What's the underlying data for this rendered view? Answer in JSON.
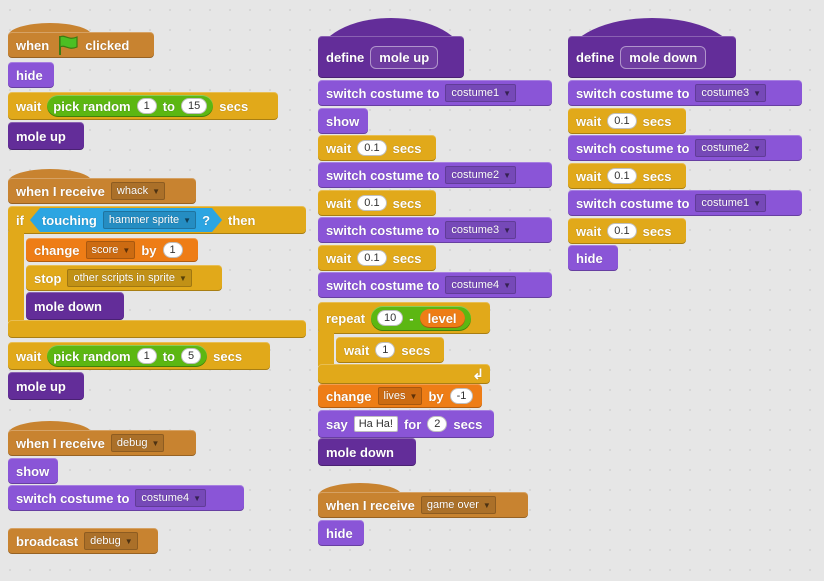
{
  "scripts": [
    {
      "blocks": [
        {
          "parts": [
            "when",
            "clicked"
          ]
        },
        {
          "parts": [
            "hide"
          ]
        },
        {
          "parts": [
            "wait",
            "pick random",
            1,
            "to",
            15,
            "secs"
          ]
        },
        {
          "parts": [
            "mole up"
          ]
        }
      ]
    },
    {
      "blocks": [
        {
          "parts": [
            "when I receive",
            "whack"
          ]
        },
        {
          "parts": [
            "if",
            "touching",
            "hammer sprite",
            "?",
            "then"
          ],
          "inner": [
            {
              "parts": [
                "change",
                "score",
                "by",
                1
              ]
            },
            {
              "parts": [
                "stop",
                "other scripts in sprite"
              ]
            },
            {
              "parts": [
                "mole down"
              ]
            }
          ]
        },
        {
          "parts": [
            "wait",
            "pick random",
            1,
            "to",
            5,
            "secs"
          ]
        },
        {
          "parts": [
            "mole up"
          ]
        }
      ]
    },
    {
      "blocks": [
        {
          "parts": [
            "when I receive",
            "debug"
          ]
        },
        {
          "parts": [
            "show"
          ]
        },
        {
          "parts": [
            "switch costume to",
            "costume4"
          ]
        }
      ]
    },
    {
      "blocks": [
        {
          "parts": [
            "broadcast",
            "debug"
          ]
        }
      ]
    },
    {
      "blocks": [
        {
          "parts": [
            "define",
            "mole up"
          ]
        },
        {
          "parts": [
            "switch costume to",
            "costume1"
          ]
        },
        {
          "parts": [
            "show"
          ]
        },
        {
          "parts": [
            "wait",
            0.1,
            "secs"
          ]
        },
        {
          "parts": [
            "switch costume to",
            "costume2"
          ]
        },
        {
          "parts": [
            "wait",
            0.1,
            "secs"
          ]
        },
        {
          "parts": [
            "switch costume to",
            "costume3"
          ]
        },
        {
          "parts": [
            "wait",
            0.1,
            "secs"
          ]
        },
        {
          "parts": [
            "switch costume to",
            "costume4"
          ]
        },
        {
          "parts": [
            "repeat",
            10,
            "-",
            "level"
          ],
          "inner": [
            {
              "parts": [
                "wait",
                1,
                "secs"
              ]
            }
          ]
        },
        {
          "parts": [
            "change",
            "lives",
            "by",
            -1
          ]
        },
        {
          "parts": [
            "say",
            "Ha Ha!",
            "for",
            2,
            "secs"
          ]
        },
        {
          "parts": [
            "mole down"
          ]
        }
      ]
    },
    {
      "blocks": [
        {
          "parts": [
            "when I receive",
            "game over"
          ]
        },
        {
          "parts": [
            "hide"
          ]
        }
      ]
    },
    {
      "blocks": [
        {
          "parts": [
            "define",
            "mole down"
          ]
        },
        {
          "parts": [
            "switch costume to",
            "costume3"
          ]
        },
        {
          "parts": [
            "wait",
            0.1,
            "secs"
          ]
        },
        {
          "parts": [
            "switch costume to",
            "costume2"
          ]
        },
        {
          "parts": [
            "wait",
            0.1,
            "secs"
          ]
        },
        {
          "parts": [
            "switch costume to",
            "costume1"
          ]
        },
        {
          "parts": [
            "wait",
            0.1,
            "secs"
          ]
        },
        {
          "parts": [
            "hide"
          ]
        }
      ]
    }
  ]
}
